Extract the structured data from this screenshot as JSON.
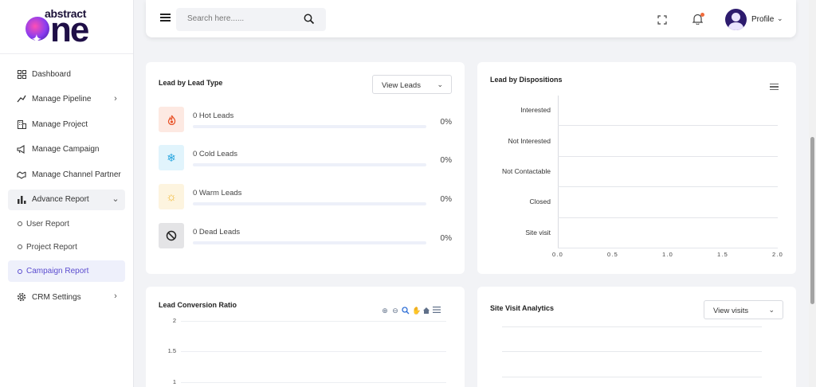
{
  "logo": {
    "top": "abstract",
    "bottom": "ne"
  },
  "sidebar": {
    "items": [
      {
        "label": "Dashboard",
        "icon": "dashboard-icon"
      },
      {
        "label": "Manage Pipeline",
        "icon": "pipeline-icon"
      },
      {
        "label": "Manage Project",
        "icon": "building-icon"
      },
      {
        "label": "Manage Campaign",
        "icon": "megaphone-icon"
      },
      {
        "label": "Manage Channel Partner",
        "icon": "handshake-icon"
      },
      {
        "label": "Advance Report",
        "icon": "bar-chart-icon"
      },
      {
        "label": "User Report"
      },
      {
        "label": "Project Report"
      },
      {
        "label": "Campaign Report"
      },
      {
        "label": "CRM Settings",
        "icon": "gear-icon"
      }
    ]
  },
  "header": {
    "search_placeholder": "Search here......",
    "profile_label": "Profile"
  },
  "lead_type": {
    "title": "Lead by Lead Type",
    "dropdown": "View Leads",
    "rows": [
      {
        "label": "0 Hot Leads",
        "pct": "0%",
        "value": 0,
        "icon": "fire-icon",
        "bg": "#fde9e2",
        "color": "#e8542a"
      },
      {
        "label": "0 Cold Leads",
        "pct": "0%",
        "value": 0,
        "icon": "snowflake-icon",
        "bg": "#e1f4fc",
        "color": "#2aa7e0"
      },
      {
        "label": "0 Warm Leads",
        "pct": "0%",
        "value": 0,
        "icon": "sun-icon",
        "bg": "#fdf4df",
        "color": "#f0b429"
      },
      {
        "label": "0 Dead Leads",
        "pct": "0%",
        "value": 0,
        "icon": "ban-icon",
        "bg": "#e4e4e6",
        "color": "#222222"
      }
    ]
  },
  "dispositions": {
    "title": "Lead by Dispositions",
    "chart_data": {
      "type": "bar",
      "orientation": "horizontal",
      "categories": [
        "Interested",
        "Not Interested",
        "Not Contactable",
        "Closed",
        "Site visit"
      ],
      "values": [
        0,
        0,
        0,
        0,
        0
      ],
      "x_ticks": [
        "0.0",
        "0.5",
        "1.0",
        "1.5",
        "2.0"
      ],
      "xlim": [
        0,
        2
      ]
    }
  },
  "conversion": {
    "title": "Lead Conversion Ratio",
    "chart_data": {
      "type": "line",
      "y_ticks": [
        "2",
        "1.5",
        "1"
      ]
    }
  },
  "site_visit": {
    "title": "Site Visit Analytics",
    "dropdown": "View visits"
  },
  "colors": {
    "accent": "#5b4ccf",
    "active_bg": "#eef0fb"
  }
}
